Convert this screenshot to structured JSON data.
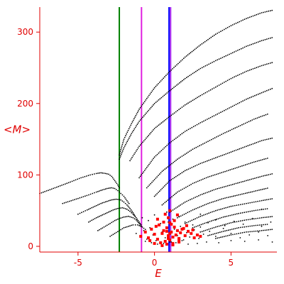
{
  "chart_data": {
    "type": "scatter",
    "title": "",
    "xlabel": "E",
    "ylabel": "<M>",
    "xlim": [
      -7.5,
      8
    ],
    "ylim": [
      -8,
      335
    ],
    "grid": false,
    "legend": "none",
    "xticks": [
      {
        "value": -5,
        "label": "-5"
      },
      {
        "value": 0,
        "label": "0"
      },
      {
        "value": 5,
        "label": "5"
      }
    ],
    "yticks": [
      {
        "value": 0,
        "label": "0"
      },
      {
        "value": 100,
        "label": "100"
      },
      {
        "value": 200,
        "label": "200"
      },
      {
        "value": 300,
        "label": "300"
      }
    ],
    "colors": {
      "axes": "#e00000",
      "points": "#000000",
      "cluster": "#ff0000"
    },
    "vertical_lines": [
      {
        "x": -2.3,
        "color": "#008000"
      },
      {
        "x": -0.85,
        "color": "#e020e0"
      },
      {
        "x": 0.95,
        "color": "#0000ff"
      },
      {
        "x": 1.05,
        "color": "#a020f0"
      }
    ],
    "series": [
      {
        "type": "line",
        "x": [
          -7.5,
          -6.5,
          -5.5,
          -4.8,
          -4.2,
          -3.8,
          -3.5,
          -3.2,
          -3.0,
          -2.8,
          -2.6,
          -2.4,
          -2.25
        ],
        "y": [
          74,
          82,
          90,
          96,
          100,
          102,
          103,
          102,
          101,
          98,
          92,
          86,
          80
        ]
      },
      {
        "type": "line",
        "x": [
          -6.0,
          -5.0,
          -4.3,
          -3.8,
          -3.4,
          -3.1,
          -2.8,
          -2.6,
          -2.4,
          -2.2,
          -2.0,
          -1.8,
          -1.6
        ],
        "y": [
          60,
          67,
          72,
          76,
          79,
          81,
          82,
          81,
          78,
          74,
          70,
          64,
          58
        ]
      },
      {
        "type": "line",
        "x": [
          -5.0,
          -4.4,
          -3.9,
          -3.5,
          -3.1,
          -2.8,
          -2.5,
          -2.2,
          -2.0,
          -1.8,
          -1.6,
          -1.4,
          -1.2
        ],
        "y": [
          45,
          51,
          56,
          60,
          63,
          65,
          66,
          65,
          62,
          58,
          53,
          47,
          40
        ]
      },
      {
        "type": "line",
        "x": [
          -4.3,
          -3.8,
          -3.4,
          -3.0,
          -2.7,
          -2.4,
          -2.1,
          -1.8,
          -1.6,
          -1.4,
          -1.2,
          -1.0,
          -0.8
        ],
        "y": [
          34,
          40,
          44,
          48,
          51,
          53,
          54,
          52,
          49,
          45,
          40,
          34,
          28
        ]
      },
      {
        "type": "line",
        "x": [
          -3.7,
          -3.3,
          -2.9,
          -2.6,
          -2.3,
          -2.0,
          -1.7,
          -1.4,
          -1.2,
          -1.0,
          -0.8
        ],
        "y": [
          22,
          27,
          32,
          36,
          39,
          41,
          42,
          40,
          37,
          32,
          26
        ]
      },
      {
        "type": "line",
        "x": [
          -2.9,
          -2.6,
          -2.3,
          -2.0,
          -1.7,
          -1.4,
          -1.1,
          -0.8,
          -0.5
        ],
        "y": [
          14,
          18,
          22,
          26,
          28,
          30,
          30,
          27,
          22
        ]
      },
      {
        "type": "line",
        "x": [
          -2.3,
          -2.0,
          -1.5,
          -1.0,
          0.0,
          1.0,
          2.0,
          3.0,
          4.0,
          5.0,
          6.0,
          7.0,
          7.8
        ],
        "y": [
          128,
          150,
          172,
          192,
          222,
          245,
          265,
          282,
          297,
          309,
          319,
          327,
          331
        ]
      },
      {
        "type": "line",
        "x": [
          -2.3,
          -2.0,
          -1.5,
          -1.0,
          0.0,
          1.0,
          2.0,
          3.0,
          4.0,
          5.0,
          6.0,
          7.0,
          7.8
        ],
        "y": [
          122,
          138,
          158,
          175,
          200,
          218,
          235,
          249,
          260,
          270,
          280,
          288,
          293
        ]
      },
      {
        "type": "line",
        "x": [
          -1.6,
          -1.0,
          0.0,
          1.0,
          2.0,
          3.0,
          4.0,
          5.0,
          6.0,
          7.0,
          7.8
        ],
        "y": [
          120,
          140,
          165,
          182,
          198,
          211,
          223,
          235,
          245,
          253,
          258
        ]
      },
      {
        "type": "line",
        "x": [
          -1.0,
          0.0,
          1.0,
          2.0,
          3.0,
          4.0,
          5.0,
          6.0,
          7.0,
          7.8
        ],
        "y": [
          96,
          125,
          145,
          161,
          173,
          184,
          195,
          206,
          215,
          222
        ]
      },
      {
        "type": "line",
        "x": [
          -0.5,
          0.5,
          1.5,
          2.5,
          3.5,
          4.5,
          5.5,
          6.5,
          7.5
        ],
        "y": [
          82,
          105,
          122,
          136,
          147,
          158,
          168,
          178,
          186
        ]
      },
      {
        "type": "line",
        "x": [
          0.0,
          1.0,
          2.0,
          3.0,
          4.0,
          5.0,
          6.0,
          7.0,
          7.8
        ],
        "y": [
          70,
          92,
          106,
          116,
          124,
          132,
          140,
          148,
          152
        ]
      },
      {
        "type": "line",
        "x": [
          0.5,
          1.5,
          2.5,
          3.5,
          4.5,
          5.5,
          6.5,
          7.5
        ],
        "y": [
          58,
          76,
          88,
          97,
          104,
          111,
          118,
          124
        ]
      },
      {
        "type": "line",
        "x": [
          1.0,
          2.0,
          3.0,
          4.0,
          5.0,
          6.0,
          7.0,
          7.8
        ],
        "y": [
          48,
          62,
          72,
          80,
          86,
          92,
          98,
          102
        ]
      },
      {
        "type": "line",
        "x": [
          1.5,
          2.5,
          3.5,
          4.5,
          5.5,
          6.5,
          7.5
        ],
        "y": [
          40,
          51,
          60,
          67,
          72,
          77,
          82
        ]
      },
      {
        "type": "line",
        "x": [
          2.0,
          3.0,
          4.0,
          5.0,
          6.0,
          7.0,
          7.8
        ],
        "y": [
          32,
          42,
          50,
          56,
          60,
          64,
          67
        ]
      },
      {
        "type": "line",
        "x": [
          2.5,
          3.5,
          4.5,
          5.5,
          6.5,
          7.5
        ],
        "y": [
          26,
          34,
          41,
          46,
          50,
          53
        ]
      },
      {
        "type": "line",
        "x": [
          3.0,
          4.0,
          5.0,
          6.0,
          7.0,
          7.8
        ],
        "y": [
          20,
          27,
          33,
          37,
          40,
          42
        ]
      },
      {
        "type": "line",
        "x": [
          3.5,
          4.5,
          5.5,
          6.5,
          7.5
        ],
        "y": [
          15,
          21,
          26,
          29,
          31
        ]
      },
      {
        "type": "line",
        "x": [
          4.0,
          5.0,
          6.0,
          7.0,
          7.8
        ],
        "y": [
          11,
          16,
          20,
          22,
          24
        ]
      }
    ],
    "scatter_points": {
      "x": [
        -1.2,
        -0.9,
        -0.7,
        -0.5,
        -0.3,
        -0.1,
        0.1,
        0.3,
        0.5,
        0.7,
        0.9,
        1.1,
        1.3,
        1.5,
        1.7,
        1.9,
        2.1,
        2.3,
        2.6,
        2.9,
        3.2,
        3.6,
        4.0,
        4.5,
        5.0,
        5.6,
        6.2,
        6.8,
        7.4,
        -0.8,
        -0.4,
        0.0,
        0.4,
        0.8,
        1.2,
        1.6,
        2.0,
        2.5,
        3.0,
        3.5,
        4.0,
        4.6,
        5.2,
        5.8,
        6.4,
        7.0,
        7.6,
        -0.6,
        -0.2,
        0.2,
        0.6,
        1.0,
        1.4,
        1.8,
        2.2,
        2.8,
        3.4,
        4.2,
        5.0,
        5.9,
        6.8,
        7.7,
        1.0,
        3.0,
        5.0,
        7.0
      ],
      "y": [
        18,
        14,
        22,
        10,
        26,
        16,
        8,
        30,
        20,
        12,
        34,
        6,
        24,
        15,
        28,
        9,
        19,
        13,
        23,
        11,
        17,
        21,
        14,
        25,
        18,
        12,
        16,
        20,
        15,
        40,
        36,
        44,
        32,
        48,
        38,
        42,
        34,
        30,
        27,
        33,
        37,
        29,
        35,
        31,
        39,
        28,
        34,
        7,
        5,
        3,
        4,
        6,
        5,
        8,
        3,
        4,
        6,
        5,
        8,
        7,
        9,
        6,
        50,
        45,
        56,
        52
      ]
    },
    "cluster_points": {
      "x": [
        -0.9,
        -0.6,
        -0.4,
        -0.2,
        0.0,
        0.2,
        0.3,
        0.5,
        0.6,
        0.7,
        0.8,
        0.9,
        1.0,
        1.0,
        1.1,
        1.2,
        1.3,
        1.4,
        1.5,
        1.6,
        1.7,
        1.8,
        2.0,
        2.2,
        2.4,
        2.6,
        2.8,
        3.0,
        0.4,
        0.8,
        1.2,
        1.6,
        -0.3,
        0.1,
        0.6,
        1.1,
        1.9,
        2.5,
        0.9,
        1.3,
        1.0,
        0.7,
        0.2,
        1.5,
        1.2,
        0.5,
        0.9,
        1.6,
        2.1,
        0.0,
        1.0,
        0.8
      ],
      "y": [
        14,
        20,
        12,
        24,
        17,
        10,
        30,
        18,
        22,
        7,
        26,
        15,
        33,
        9,
        20,
        13,
        27,
        16,
        22,
        11,
        19,
        24,
        15,
        21,
        18,
        12,
        16,
        14,
        5,
        3,
        4,
        6,
        8,
        28,
        34,
        31,
        25,
        23,
        40,
        36,
        50,
        45,
        38,
        44,
        2,
        1,
        11,
        9,
        29,
        4,
        18,
        21
      ]
    }
  }
}
